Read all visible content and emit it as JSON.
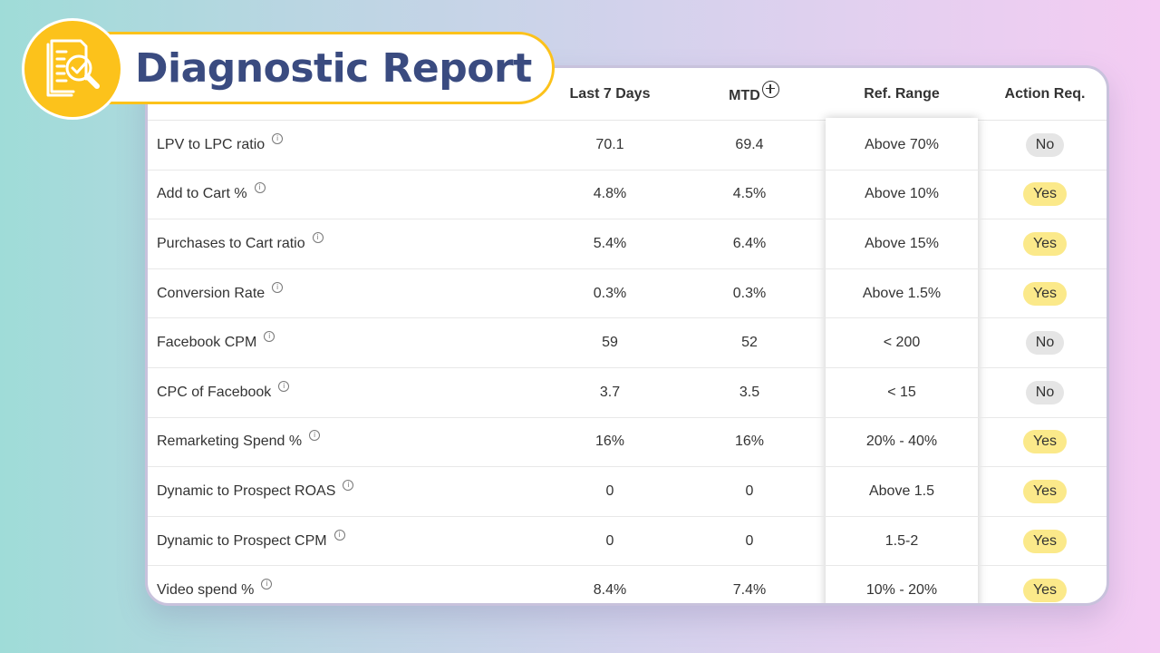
{
  "title": "Diagnostic Report",
  "colors": {
    "accent": "#fcc21b",
    "title": "#3a4b80",
    "yes": "#fbe98a",
    "no": "#e5e5e5"
  },
  "icons": {
    "badge": "report-check-magnifier-icon",
    "info": "info-icon",
    "add": "plus-circle-icon"
  },
  "columns": {
    "last7": "Last 7 Days",
    "mtd": "MTD",
    "ref": "Ref. Range",
    "action": "Action Req."
  },
  "rows": [
    {
      "metric": "LPV to LPC ratio",
      "last7": "70.1",
      "mtd": "69.4",
      "ref": "Above 70%",
      "action": "No"
    },
    {
      "metric": "Add to Cart %",
      "last7": "4.8%",
      "mtd": "4.5%",
      "ref": "Above 10%",
      "action": "Yes"
    },
    {
      "metric": "Purchases to Cart ratio",
      "last7": "5.4%",
      "mtd": "6.4%",
      "ref": "Above 15%",
      "action": "Yes"
    },
    {
      "metric": "Conversion Rate",
      "last7": "0.3%",
      "mtd": "0.3%",
      "ref": "Above 1.5%",
      "action": "Yes"
    },
    {
      "metric": "Facebook CPM",
      "last7": "59",
      "mtd": "52",
      "ref": "< 200",
      "action": "No"
    },
    {
      "metric": "CPC of Facebook",
      "last7": "3.7",
      "mtd": "3.5",
      "ref": "< 15",
      "action": "No"
    },
    {
      "metric": "Remarketing Spend %",
      "last7": "16%",
      "mtd": "16%",
      "ref": "20% - 40%",
      "action": "Yes"
    },
    {
      "metric": "Dynamic to Prospect ROAS",
      "last7": "0",
      "mtd": "0",
      "ref": "Above 1.5",
      "action": "Yes"
    },
    {
      "metric": "Dynamic to Prospect CPM",
      "last7": "0",
      "mtd": "0",
      "ref": "1.5-2",
      "action": "Yes"
    },
    {
      "metric": "Video spend %",
      "last7": "8.4%",
      "mtd": "7.4%",
      "ref": "10% - 20%",
      "action": "Yes"
    }
  ]
}
